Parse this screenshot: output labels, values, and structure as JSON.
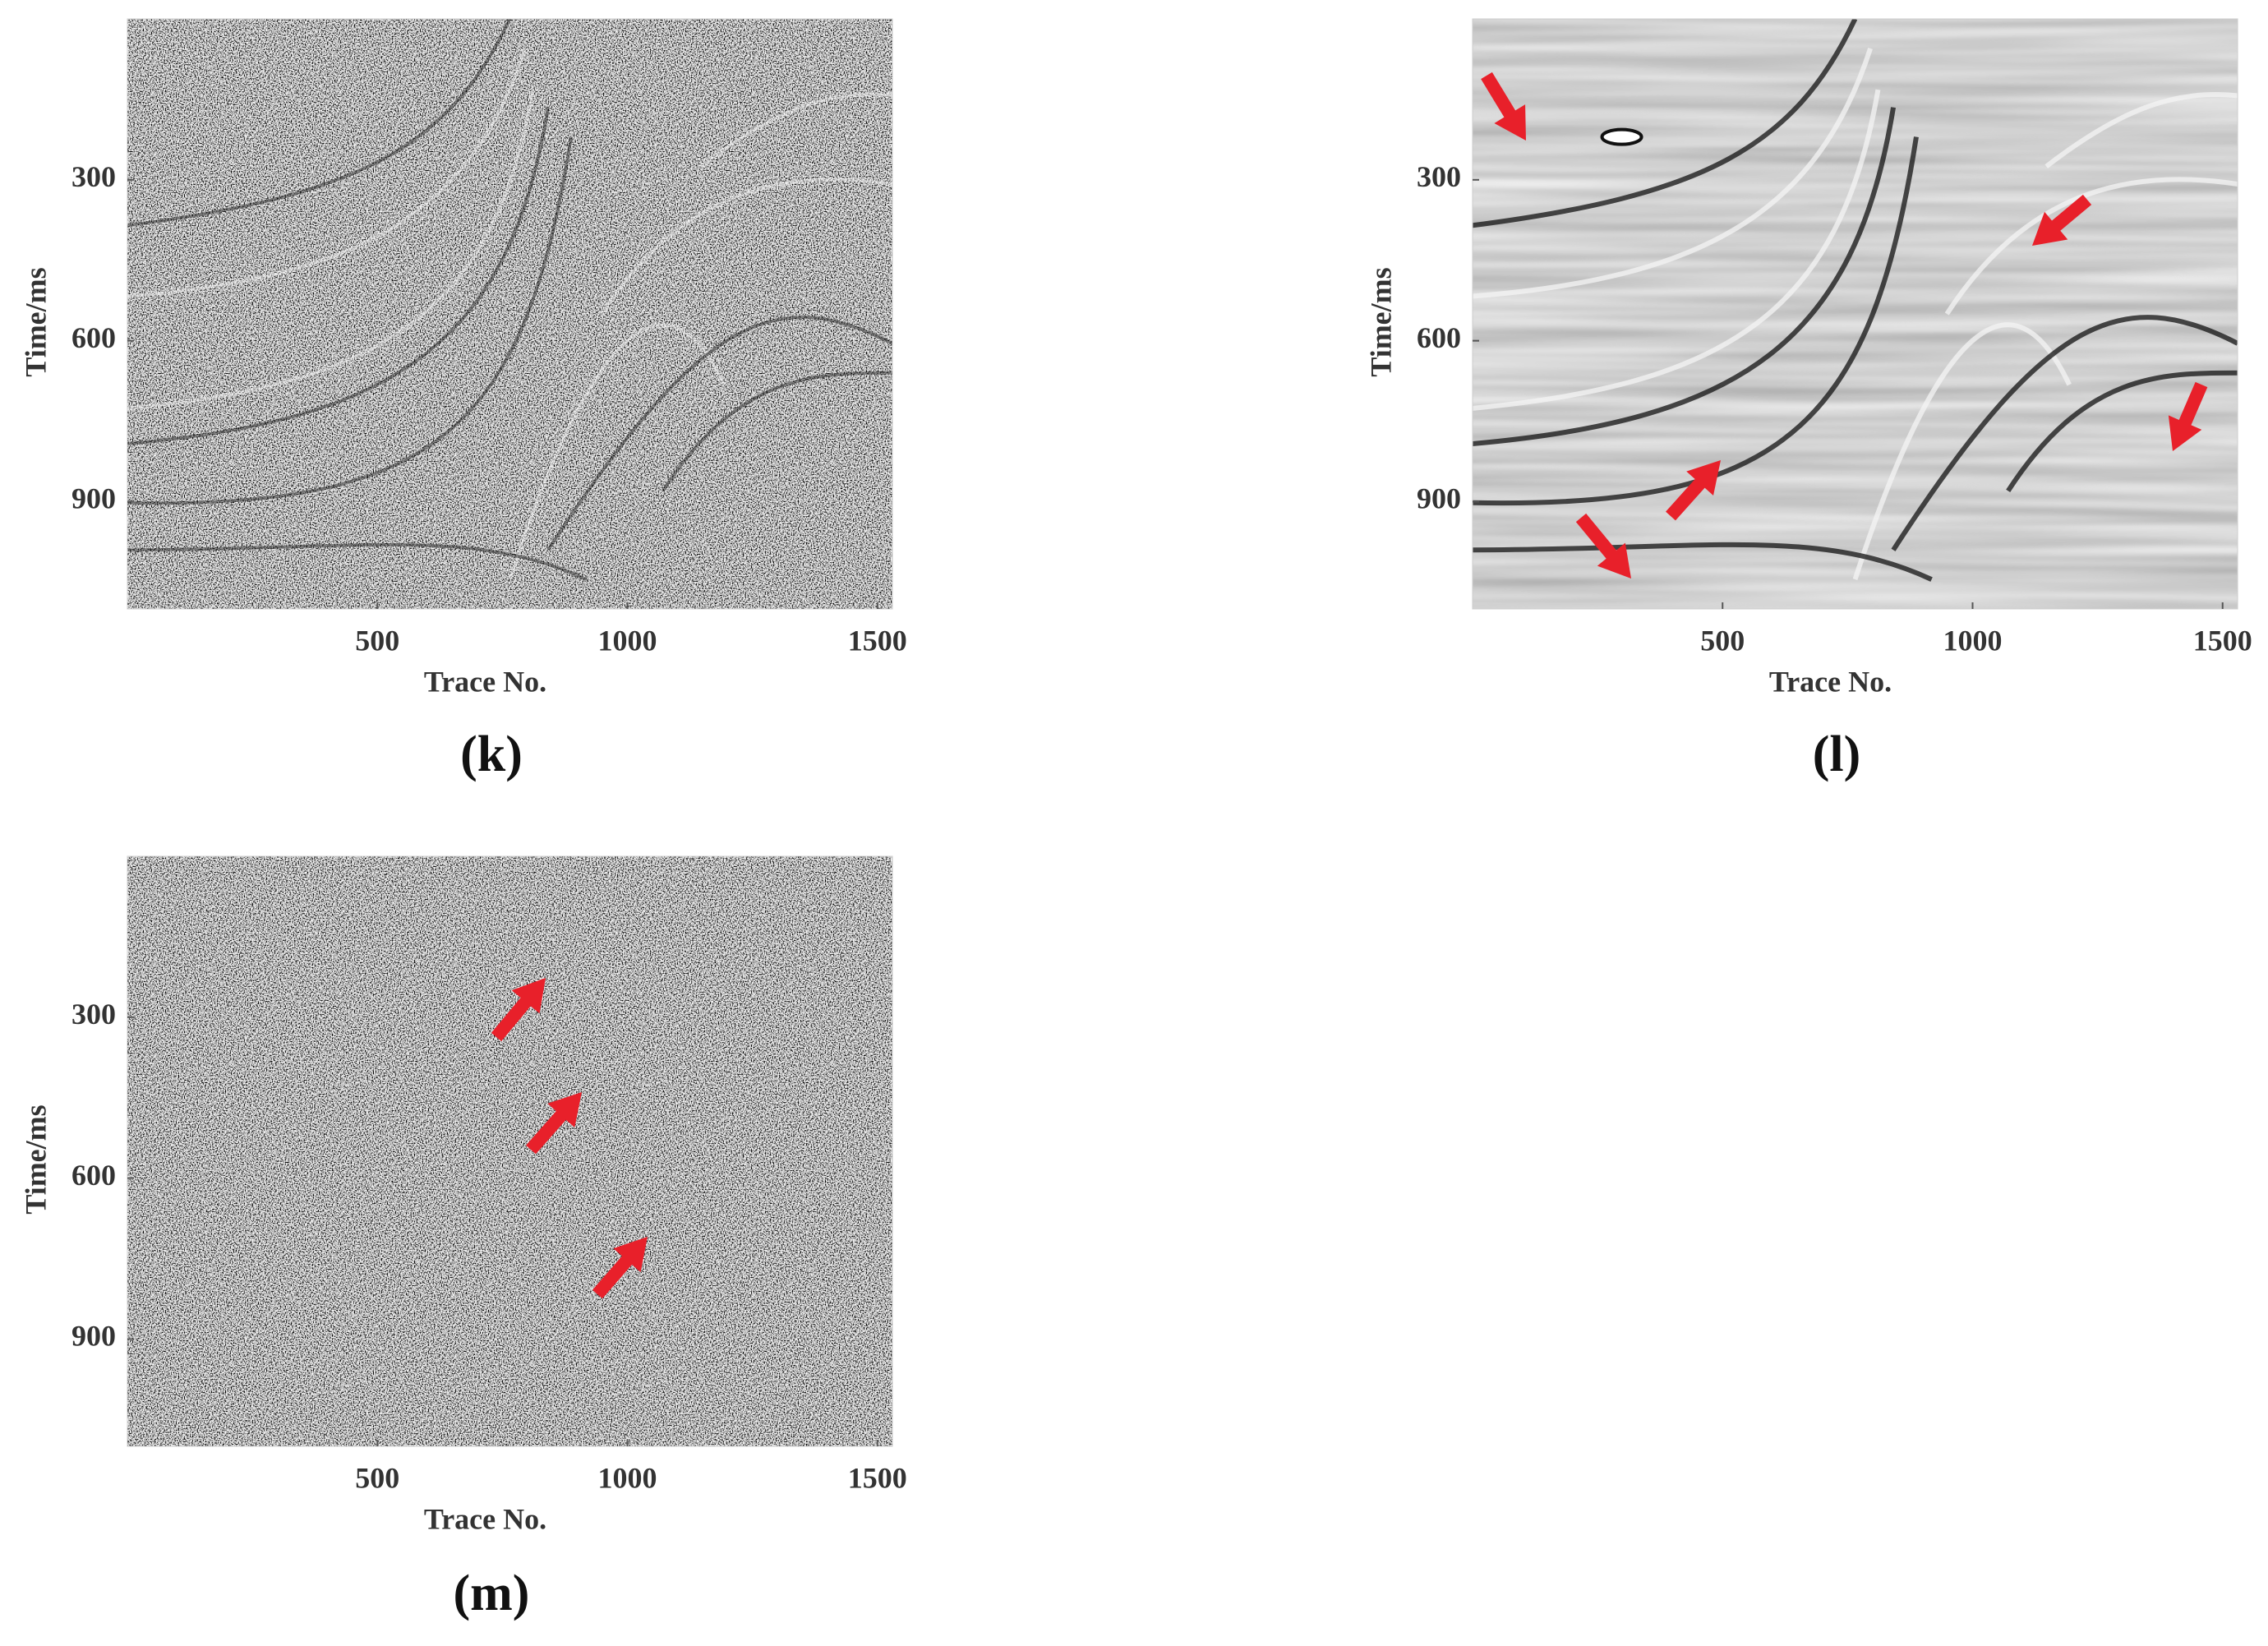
{
  "chart_data": [
    {
      "type": "image",
      "caption": "(k)",
      "xlabel": "Trace No.",
      "ylabel": "Time/ms",
      "xlim": [
        0,
        1530
      ],
      "ylim": [
        0,
        1100
      ],
      "y_inverted": true,
      "xticks": [
        500,
        1000,
        1500
      ],
      "yticks": [
        300,
        600,
        900
      ]
    },
    {
      "type": "image",
      "caption": "(l)",
      "xlabel": "Trace No.",
      "ylabel": "Time/ms",
      "xlim": [
        0,
        1530
      ],
      "ylim": [
        0,
        1100
      ],
      "y_inverted": true,
      "xticks": [
        500,
        1000,
        1500
      ],
      "yticks": [
        300,
        600,
        900
      ]
    },
    {
      "type": "image",
      "caption": "(m)",
      "xlabel": "Trace No.",
      "ylabel": "Time/ms",
      "xlim": [
        0,
        1530
      ],
      "ylim": [
        0,
        1100
      ],
      "y_inverted": true,
      "xticks": [
        500,
        1000,
        1500
      ],
      "yticks": [
        300,
        600,
        900
      ]
    }
  ]
}
